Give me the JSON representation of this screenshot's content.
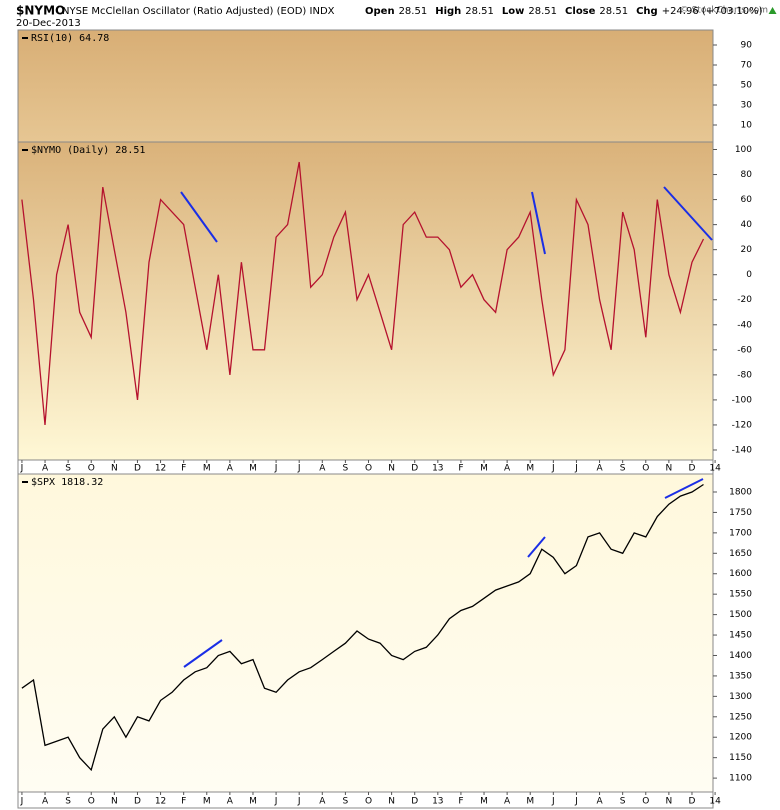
{
  "header": {
    "symbol": "$NYMO",
    "name": "NYSE McClellan Oscillator (Ratio Adjusted) (EOD) INDX",
    "date": "20-Dec-2013",
    "quote": [
      {
        "label": "Open",
        "value": "28.51"
      },
      {
        "label": "High",
        "value": "28.51"
      },
      {
        "label": "Low",
        "value": "28.51"
      },
      {
        "label": "Close",
        "value": "28.51"
      },
      {
        "label": "Chg",
        "value": "+24.96 (+703.10%)"
      }
    ],
    "credit": "© StockCharts.com"
  },
  "chart_data": [
    {
      "type": "line",
      "title": "RSI(10) 64.78",
      "ylim": [
        -7,
        105
      ],
      "yticks": [
        10,
        30,
        50,
        70,
        90
      ]
    },
    {
      "type": "line",
      "title": "$NYMO (Daily) 28.51",
      "ylim": [
        -148,
        106
      ],
      "yticks": [
        100,
        80,
        60,
        40,
        20,
        0,
        -20,
        -40,
        -60,
        -80,
        -100,
        -120,
        -140
      ],
      "xlim": [
        -0.17,
        29.91
      ],
      "xticks": [
        {
          "value": 0,
          "label": "J"
        },
        {
          "value": 1,
          "label": "A"
        },
        {
          "value": 2,
          "label": "S"
        },
        {
          "value": 3,
          "label": "O"
        },
        {
          "value": 4,
          "label": "N"
        },
        {
          "value": 5,
          "label": "D"
        },
        {
          "value": 6,
          "label": "12"
        },
        {
          "value": 7,
          "label": "F"
        },
        {
          "value": 8,
          "label": "M"
        },
        {
          "value": 9,
          "label": "A"
        },
        {
          "value": 10,
          "label": "M"
        },
        {
          "value": 11,
          "label": "J"
        },
        {
          "value": 12,
          "label": "J"
        },
        {
          "value": 13,
          "label": "A"
        },
        {
          "value": 14,
          "label": "S"
        },
        {
          "value": 15,
          "label": "O"
        },
        {
          "value": 16,
          "label": "N"
        },
        {
          "value": 17,
          "label": "D"
        },
        {
          "value": 18,
          "label": "13"
        },
        {
          "value": 19,
          "label": "F"
        },
        {
          "value": 20,
          "label": "M"
        },
        {
          "value": 21,
          "label": "A"
        },
        {
          "value": 22,
          "label": "M"
        },
        {
          "value": 23,
          "label": "J"
        },
        {
          "value": 24,
          "label": "J"
        },
        {
          "value": 25,
          "label": "A"
        },
        {
          "value": 26,
          "label": "S"
        },
        {
          "value": 27,
          "label": "O"
        },
        {
          "value": 28,
          "label": "N"
        },
        {
          "value": 29,
          "label": "D"
        },
        {
          "value": 30,
          "label": "14"
        }
      ],
      "x": [
        0,
        0.5,
        1,
        1.5,
        2,
        2.5,
        3,
        3.5,
        4,
        4.5,
        5,
        5.5,
        6,
        6.5,
        7,
        7.5,
        8,
        8.5,
        9,
        9.5,
        10,
        10.5,
        11,
        11.5,
        12,
        12.5,
        13,
        13.5,
        14,
        14.5,
        15,
        15.5,
        16,
        16.5,
        17,
        17.5,
        18,
        18.5,
        19,
        19.5,
        20,
        20.5,
        21,
        21.5,
        22,
        22.5,
        23,
        23.5,
        24,
        24.5,
        25,
        25.5,
        26,
        26.5,
        27,
        27.5,
        28,
        28.5,
        29,
        29.5
      ],
      "series": [
        {
          "color": "#b5122e",
          "values": [
            60,
            -20,
            -120,
            0,
            40,
            -30,
            -50,
            70,
            20,
            -30,
            -100,
            10,
            60,
            50,
            40,
            -10,
            -60,
            0,
            -80,
            10,
            -60,
            -60,
            30,
            40,
            90,
            -10,
            0,
            30,
            50,
            -20,
            0,
            -30,
            -60,
            40,
            50,
            30,
            30,
            20,
            -10,
            0,
            -20,
            -30,
            20,
            30,
            50,
            -20,
            -80,
            -60,
            60,
            40,
            -20,
            -60,
            50,
            20,
            -50,
            60,
            0,
            -30,
            10,
            28.51
          ]
        }
      ]
    },
    {
      "type": "line",
      "title": "$SPX 1818.32",
      "ylim": [
        1066,
        1844
      ],
      "yticks": [
        1800,
        1750,
        1700,
        1650,
        1600,
        1550,
        1500,
        1450,
        1400,
        1350,
        1300,
        1250,
        1200,
        1150,
        1100
      ],
      "xlim": [
        -0.17,
        29.91
      ],
      "xticks": [
        {
          "value": 0,
          "label": "J"
        },
        {
          "value": 1,
          "label": "A"
        },
        {
          "value": 2,
          "label": "S"
        },
        {
          "value": 3,
          "label": "O"
        },
        {
          "value": 4,
          "label": "N"
        },
        {
          "value": 5,
          "label": "D"
        },
        {
          "value": 6,
          "label": "12"
        },
        {
          "value": 7,
          "label": "F"
        },
        {
          "value": 8,
          "label": "M"
        },
        {
          "value": 9,
          "label": "A"
        },
        {
          "value": 10,
          "label": "M"
        },
        {
          "value": 11,
          "label": "J"
        },
        {
          "value": 12,
          "label": "J"
        },
        {
          "value": 13,
          "label": "A"
        },
        {
          "value": 14,
          "label": "S"
        },
        {
          "value": 15,
          "label": "O"
        },
        {
          "value": 16,
          "label": "N"
        },
        {
          "value": 17,
          "label": "D"
        },
        {
          "value": 18,
          "label": "13"
        },
        {
          "value": 19,
          "label": "F"
        },
        {
          "value": 20,
          "label": "M"
        },
        {
          "value": 21,
          "label": "A"
        },
        {
          "value": 22,
          "label": "M"
        },
        {
          "value": 23,
          "label": "J"
        },
        {
          "value": 24,
          "label": "J"
        },
        {
          "value": 25,
          "label": "A"
        },
        {
          "value": 26,
          "label": "S"
        },
        {
          "value": 27,
          "label": "O"
        },
        {
          "value": 28,
          "label": "N"
        },
        {
          "value": 29,
          "label": "D"
        },
        {
          "value": 30,
          "label": "14"
        }
      ],
      "x": [
        0,
        0.5,
        1,
        1.5,
        2,
        2.5,
        3,
        3.5,
        4,
        4.5,
        5,
        5.5,
        6,
        6.5,
        7,
        7.5,
        8,
        8.5,
        9,
        9.5,
        10,
        10.5,
        11,
        11.5,
        12,
        12.5,
        13,
        13.5,
        14,
        14.5,
        15,
        15.5,
        16,
        16.5,
        17,
        17.5,
        18,
        18.5,
        19,
        19.5,
        20,
        20.5,
        21,
        21.5,
        22,
        22.5,
        23,
        23.5,
        24,
        24.5,
        25,
        25.5,
        26,
        26.5,
        27,
        27.5,
        28,
        28.5,
        29,
        29.5
      ],
      "series": [
        {
          "color": "#000000",
          "values": [
            1320,
            1340,
            1180,
            1190,
            1200,
            1150,
            1120,
            1220,
            1250,
            1200,
            1250,
            1240,
            1290,
            1310,
            1340,
            1360,
            1370,
            1400,
            1410,
            1380,
            1390,
            1320,
            1310,
            1340,
            1360,
            1370,
            1390,
            1410,
            1430,
            1460,
            1440,
            1430,
            1400,
            1390,
            1410,
            1420,
            1450,
            1490,
            1510,
            1520,
            1540,
            1560,
            1570,
            1580,
            1600,
            1660,
            1640,
            1600,
            1620,
            1690,
            1700,
            1660,
            1650,
            1700,
            1690,
            1740,
            1770,
            1790,
            1800,
            1818.32
          ]
        }
      ]
    }
  ]
}
